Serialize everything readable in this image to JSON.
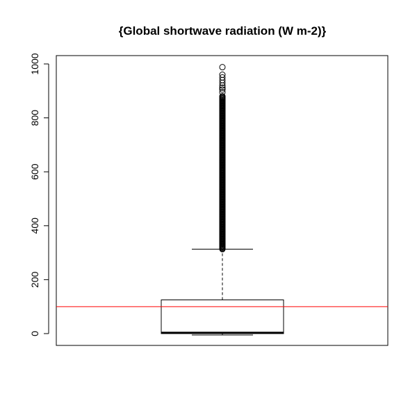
{
  "chart_data": {
    "type": "boxplot",
    "title": "{Global shortwave radiation (W m-2)}",
    "xlabel": "",
    "ylabel": "",
    "ylim": [
      -40,
      1010
    ],
    "yticks": [
      0,
      200,
      400,
      600,
      800,
      1000
    ],
    "ytick_labels": [
      "0",
      "200",
      "400",
      "600",
      "800",
      "1000"
    ],
    "grid": false,
    "box": {
      "min": -5,
      "q1": 0,
      "median": 3,
      "q3": 125,
      "whisker_high": 313,
      "outliers_range": [
        313,
        880
      ],
      "outliers_extra": [
        895,
        905,
        912,
        920,
        930,
        940,
        950,
        960,
        988
      ]
    },
    "reference_line": {
      "y": 100,
      "color": "#ff0000"
    },
    "box_color": "#000000"
  }
}
